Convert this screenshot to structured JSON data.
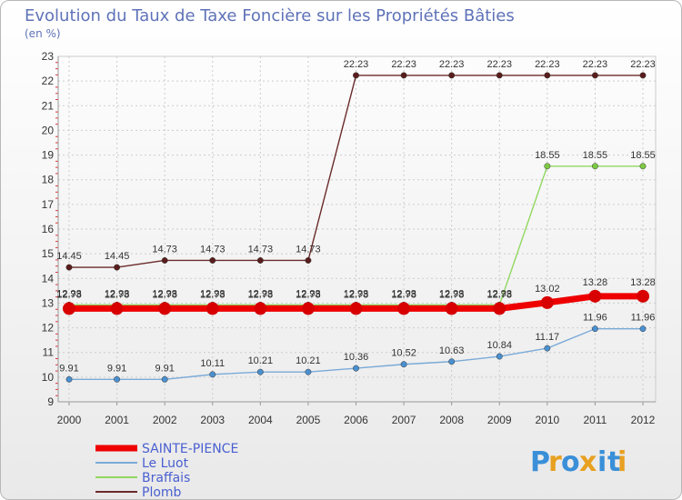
{
  "chart_data": {
    "type": "line",
    "title": "Evolution du Taux de Taxe Foncière sur les Propriétés Bâties",
    "subtitle": "(en %)",
    "xlabel": "",
    "ylabel": "",
    "ylim": [
      9,
      23
    ],
    "yticks": [
      9,
      10,
      11,
      12,
      13,
      14,
      15,
      16,
      17,
      18,
      19,
      20,
      21,
      22,
      23
    ],
    "categories": [
      "2000",
      "2001",
      "2002",
      "2003",
      "2004",
      "2005",
      "2006",
      "2007",
      "2008",
      "2009",
      "2010",
      "2011",
      "2012"
    ],
    "series": [
      {
        "name": "Plomb",
        "color": "#6b2b2b",
        "marker": "#5a1c1c",
        "values": [
          14.45,
          14.45,
          14.73,
          14.73,
          14.73,
          14.73,
          22.23,
          22.23,
          22.23,
          22.23,
          22.23,
          22.23,
          22.23
        ],
        "labels": [
          "14.45",
          "14.45",
          "14.73",
          "14.73",
          "14.73",
          "14.73",
          "22.23",
          "22.23",
          "22.23",
          "22.23",
          "22.23",
          "22.23",
          "22.23"
        ]
      },
      {
        "name": "Braffais",
        "color": "#90d860",
        "marker": "#7cc942",
        "values": [
          12.93,
          12.93,
          12.93,
          12.93,
          12.93,
          12.93,
          12.93,
          12.93,
          12.93,
          12.93,
          18.55,
          18.55,
          18.55
        ],
        "labels": [
          "12.93",
          "12.93",
          "12.93",
          "12.93",
          "12.93",
          "12.93",
          "12.93",
          "12.93",
          "12.93",
          "12.93",
          "18.55",
          "18.55",
          "18.55"
        ]
      },
      {
        "name": "Le Luot",
        "color": "#7aaad8",
        "marker": "#4a90d0",
        "values": [
          9.91,
          9.91,
          9.91,
          10.11,
          10.21,
          10.21,
          10.36,
          10.52,
          10.63,
          10.84,
          11.17,
          11.96,
          11.96
        ],
        "labels": [
          "9.91",
          "9.91",
          "9.91",
          "10.11",
          "10.21",
          "10.21",
          "10.36",
          "10.52",
          "10.63",
          "10.84",
          "11.17",
          "11.96",
          "11.96"
        ]
      },
      {
        "name": "SAINTE-PIENCE",
        "color": "#ee0000",
        "marker": "#d80000",
        "values": [
          12.78,
          12.78,
          12.78,
          12.78,
          12.78,
          12.78,
          12.78,
          12.78,
          12.78,
          12.78,
          13.02,
          13.28,
          13.28
        ],
        "labels": [
          "12.78",
          "12.78",
          "12.78",
          "12.78",
          "12.78",
          "12.78",
          "12.78",
          "12.78",
          "12.78",
          "12.78",
          "13.02",
          "13.28",
          "13.28"
        ]
      }
    ],
    "legend": [
      "SAINTE-PIENCE",
      "Le Luot",
      "Braffais",
      "Plomb"
    ],
    "legend_position": "bottom-left",
    "grid": true
  },
  "logo": {
    "letters": [
      "P",
      "r",
      "o",
      "x",
      "i",
      "t",
      "i"
    ],
    "colors": [
      "#3a8fd8",
      "#e8a020",
      "#3a8fd8",
      "#e8a020",
      "#3a8fd8",
      "#3a8fd8",
      "#e8a020"
    ]
  }
}
